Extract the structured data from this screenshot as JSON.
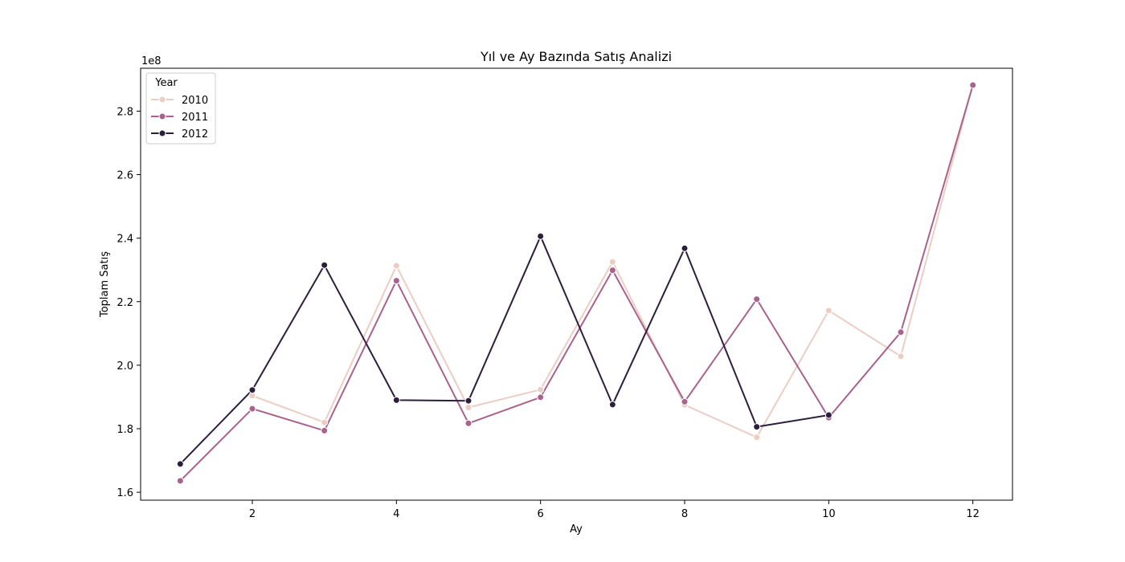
{
  "chart_data": {
    "type": "line",
    "title": "Yıl ve Ay Bazında Satış Analizi",
    "xlabel": "Ay",
    "ylabel": "Toplam Satış",
    "y_offset_label": "1e8",
    "xlim": [
      0.45,
      12.55
    ],
    "ylim": [
      1.575,
      2.935
    ],
    "x_ticks": [
      2,
      4,
      6,
      8,
      10,
      12
    ],
    "x_tick_labels": [
      "2",
      "4",
      "6",
      "8",
      "10",
      "12"
    ],
    "y_ticks": [
      1.6,
      1.8,
      2.0,
      2.2,
      2.4,
      2.6,
      2.8
    ],
    "y_tick_labels": [
      "1.6",
      "1.8",
      "2.0",
      "2.2",
      "2.4",
      "2.6",
      "2.8"
    ],
    "y_unit_multiplier": 100000000,
    "grid": false,
    "legend": {
      "title": "Year",
      "placement": "top-left"
    },
    "series": [
      {
        "name": "2010",
        "color": "#ebcdc3",
        "x": [
          2,
          3,
          4,
          5,
          6,
          7,
          8,
          9,
          10,
          11,
          12
        ],
        "values": [
          1.904,
          1.82,
          2.313,
          1.867,
          1.923,
          2.325,
          1.875,
          1.773,
          2.172,
          2.028,
          2.884
        ]
      },
      {
        "name": "2011",
        "color": "#a9628c",
        "x": [
          1,
          2,
          3,
          4,
          5,
          6,
          7,
          8,
          9,
          10,
          11,
          12
        ],
        "values": [
          1.636,
          1.863,
          1.794,
          2.266,
          1.817,
          1.899,
          2.299,
          1.885,
          2.208,
          1.835,
          2.104,
          2.882
        ]
      },
      {
        "name": "2012",
        "color": "#2d1e3e",
        "x": [
          1,
          2,
          3,
          4,
          5,
          6,
          7,
          8,
          9,
          10
        ],
        "values": [
          1.689,
          1.922,
          2.315,
          1.89,
          1.888,
          2.406,
          1.876,
          2.368,
          1.806,
          1.843
        ]
      }
    ]
  }
}
